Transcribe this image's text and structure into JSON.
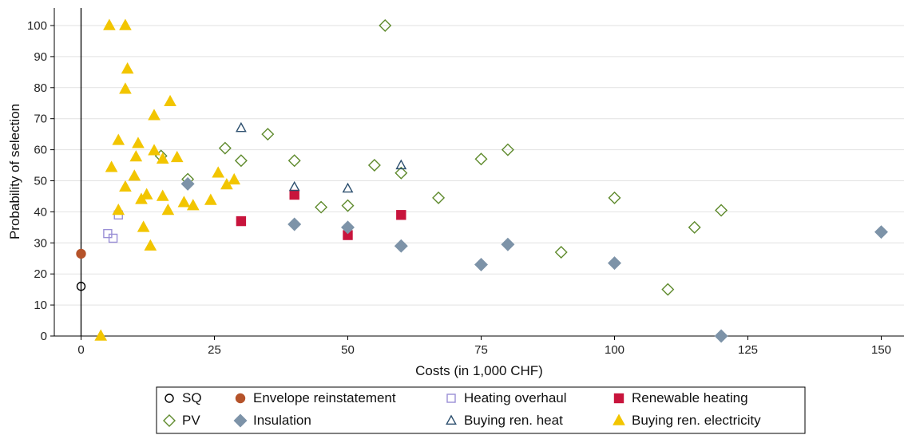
{
  "chart_data": {
    "type": "scatter",
    "xlabel": "Costs (in 1,000 CHF)",
    "ylabel": "Probability of selection",
    "xlim": [
      -5,
      154
    ],
    "ylim": [
      0,
      100
    ],
    "xticks": [
      0,
      25,
      50,
      75,
      100,
      125,
      150
    ],
    "yticks": [
      0,
      10,
      20,
      30,
      40,
      50,
      60,
      70,
      80,
      90,
      100
    ],
    "grid": true,
    "legend_position": "bottom",
    "series": [
      {
        "name": "SQ",
        "marker": "circle",
        "filled": false,
        "color": "#000000",
        "points": [
          [
            0,
            16
          ]
        ]
      },
      {
        "name": "Envelope reinstatement",
        "marker": "circle",
        "filled": true,
        "color": "#b5532a",
        "points": [
          [
            0,
            26.5
          ]
        ]
      },
      {
        "name": "Heating overhaul",
        "marker": "square",
        "filled": false,
        "color": "#9a8fd6",
        "points": [
          [
            5,
            33
          ],
          [
            6,
            31.5
          ],
          [
            7,
            39
          ]
        ]
      },
      {
        "name": "Renewable heating",
        "marker": "square",
        "filled": true,
        "color": "#c8143c",
        "points": [
          [
            30,
            37
          ],
          [
            40,
            45.5
          ],
          [
            50,
            32.5
          ],
          [
            60,
            39
          ]
        ]
      },
      {
        "name": "PV",
        "marker": "diamond",
        "filled": false,
        "color": "#5e8a2c",
        "points": [
          [
            15,
            58
          ],
          [
            20,
            50.5
          ],
          [
            27,
            60.5
          ],
          [
            30,
            56.5
          ],
          [
            35,
            65
          ],
          [
            40,
            56.5
          ],
          [
            45,
            41.5
          ],
          [
            50,
            42
          ],
          [
            55,
            55
          ],
          [
            57,
            100
          ],
          [
            60,
            52.5
          ],
          [
            67,
            44.5
          ],
          [
            75,
            57
          ],
          [
            80,
            60
          ],
          [
            90,
            27
          ],
          [
            100,
            44.5
          ],
          [
            110,
            15
          ],
          [
            115,
            35
          ],
          [
            120,
            40.5
          ]
        ]
      },
      {
        "name": "Insulation",
        "marker": "diamond",
        "filled": true,
        "color": "#7d93a8",
        "points": [
          [
            20,
            49
          ],
          [
            40,
            36
          ],
          [
            50,
            35
          ],
          [
            60,
            29
          ],
          [
            75,
            23
          ],
          [
            80,
            29.5
          ],
          [
            100,
            23.5
          ],
          [
            120,
            0
          ],
          [
            150,
            33.5
          ]
        ]
      },
      {
        "name": "Buying ren. heat",
        "marker": "triangle",
        "filled": false,
        "color": "#2c4f6e",
        "points": [
          [
            30,
            67
          ],
          [
            40,
            48
          ],
          [
            50,
            47.5
          ],
          [
            60,
            55
          ]
        ]
      },
      {
        "name": "Buying ren. electricity",
        "marker": "triangle",
        "filled": true,
        "color": "#f2c500",
        "points": [
          [
            3.7,
            0
          ],
          [
            5.3,
            100
          ],
          [
            8.3,
            100
          ],
          [
            8.7,
            86
          ],
          [
            8.3,
            79.5
          ],
          [
            16.7,
            75.5
          ],
          [
            13.7,
            71
          ],
          [
            7,
            63
          ],
          [
            10.7,
            62
          ],
          [
            5.7,
            54.3
          ],
          [
            10.3,
            57.7
          ],
          [
            13.7,
            59.7
          ],
          [
            15.3,
            57
          ],
          [
            18,
            57.5
          ],
          [
            10,
            51.5
          ],
          [
            8.3,
            48
          ],
          [
            25.7,
            52.5
          ],
          [
            28.7,
            50.3
          ],
          [
            27.3,
            48.7
          ],
          [
            12.3,
            45.5
          ],
          [
            15.3,
            45
          ],
          [
            11.3,
            44
          ],
          [
            19.3,
            43
          ],
          [
            21,
            42
          ],
          [
            24.3,
            43.7
          ],
          [
            7,
            40.5
          ],
          [
            16.3,
            40.5
          ],
          [
            11.7,
            35
          ],
          [
            13,
            29
          ]
        ]
      }
    ]
  }
}
